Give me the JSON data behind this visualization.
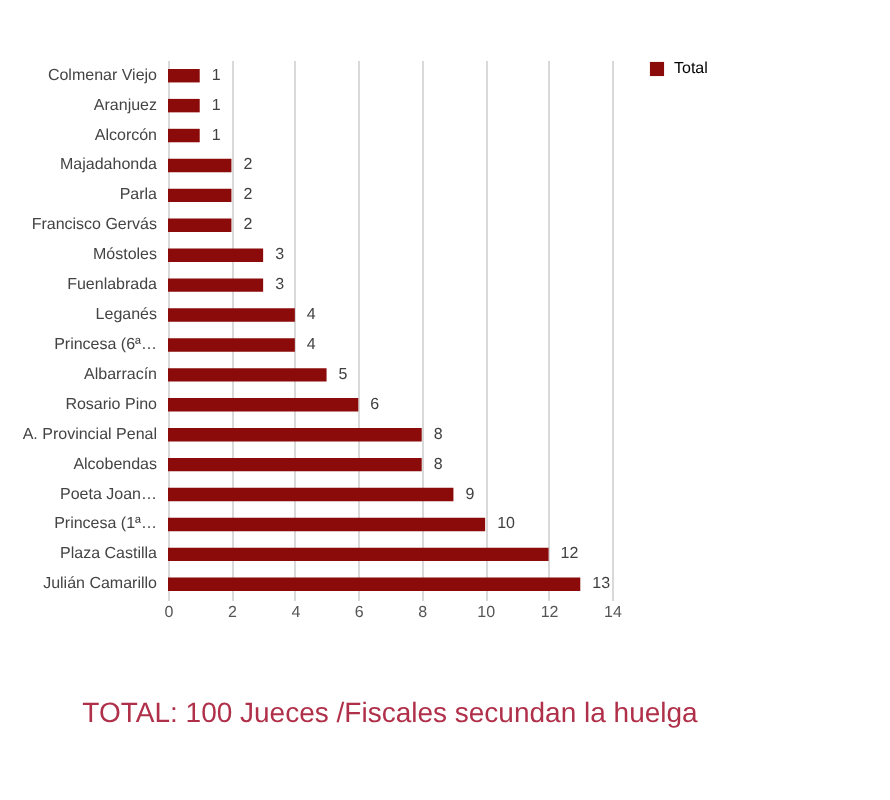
{
  "chart_data": {
    "type": "bar",
    "orientation": "horizontal",
    "title": "TOTAL: 100 Jueces /Fiscales secundan la huelga",
    "categories": [
      "Colmenar Viejo",
      "Aranjuez",
      "Alcorcón",
      "Majadahonda",
      "Parla",
      "Francisco Gervás",
      "Móstoles",
      "Fuenlabrada",
      "Leganés",
      "Princesa (6ª…",
      "Albarracín",
      "Rosario Pino",
      "A. Provincial Penal",
      "Alcobendas",
      "Poeta Joan…",
      "Princesa (1ª…",
      "Plaza Castilla",
      "Julián Camarillo"
    ],
    "series": [
      {
        "name": "Total",
        "color": "#8b0a0a",
        "values": [
          1,
          1,
          1,
          2,
          2,
          2,
          3,
          3,
          4,
          4,
          5,
          6,
          8,
          8,
          9,
          10,
          12,
          13
        ]
      }
    ],
    "xlim": [
      0,
      14
    ],
    "xticks": [
      0,
      2,
      4,
      6,
      8,
      10,
      12,
      14
    ],
    "grid": "x",
    "legend": "right",
    "data_labels": true
  }
}
